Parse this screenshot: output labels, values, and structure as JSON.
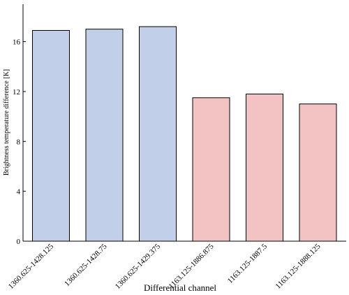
{
  "chart_data": {
    "type": "bar",
    "categories": [
      "1360.625-1428.125",
      "1360.625-1428.75",
      "1360.625-1429.375",
      "1163.125-1886.875",
      "1163.125-1887.5",
      "1163.125-1888.125"
    ],
    "values": [
      16.9,
      17.0,
      17.2,
      11.5,
      11.8,
      11.0
    ],
    "bar_colors": [
      "#c1d0e8",
      "#c1d0e8",
      "#c1d0e8",
      "#f3c3c3",
      "#f3c3c3",
      "#f3c3c3"
    ],
    "xlabel": "Differential channel",
    "ylabel": "Brightness temperature difference [K]",
    "ylim": [
      0,
      19
    ],
    "yticks": [
      "0",
      "4",
      "8",
      "12",
      "16"
    ],
    "grid": false,
    "legend": "none"
  }
}
